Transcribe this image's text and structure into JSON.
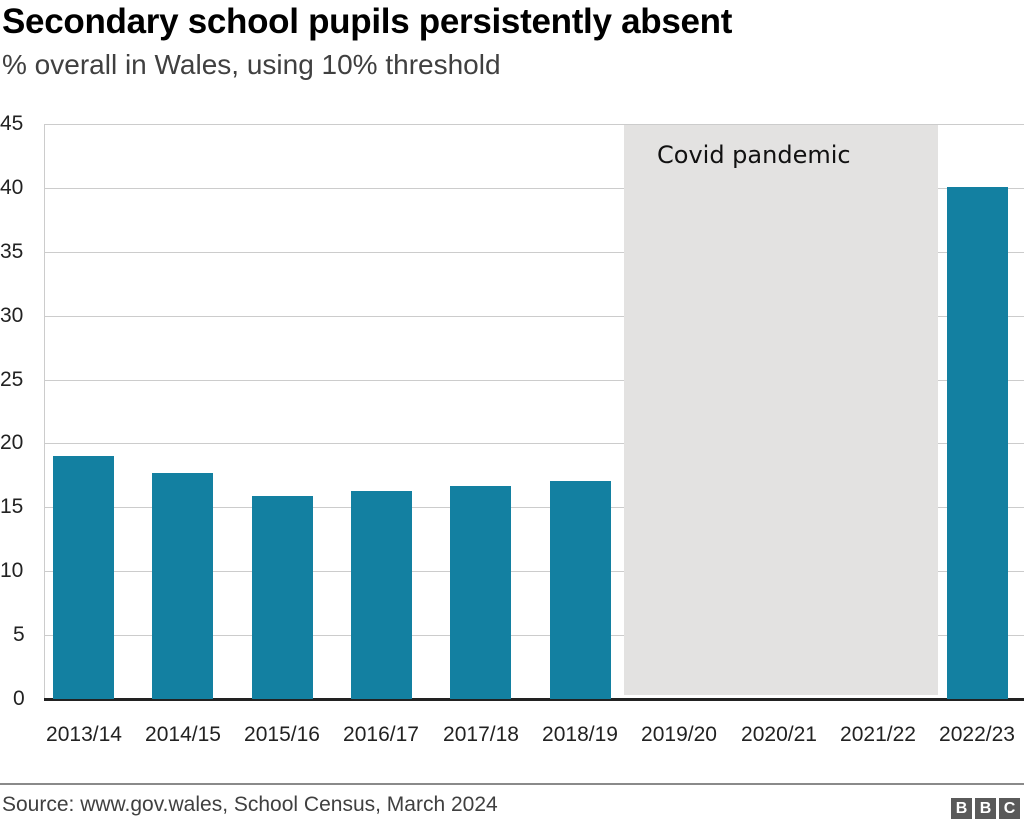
{
  "header": {
    "title": "Secondary school pupils persistently absent",
    "subtitle": "% overall in Wales, using 10% threshold"
  },
  "annotation": {
    "label": "Covid pandemic",
    "color": "#e3e2e1"
  },
  "footer": {
    "source": "Source: www.gov.wales, School Census, March 2024",
    "logo": [
      "B",
      "B",
      "C"
    ]
  },
  "colors": {
    "bar": "#1380a1",
    "grid": "#cccccc",
    "baseline": "#222222"
  },
  "chart_data": {
    "type": "bar",
    "title": "Secondary school pupils persistently absent",
    "subtitle": "% overall in Wales, using 10% threshold",
    "xlabel": "",
    "ylabel": "",
    "categories": [
      "2013/14",
      "2014/15",
      "2015/16",
      "2016/17",
      "2017/18",
      "2018/19",
      "2019/20",
      "2020/21",
      "2021/22",
      "2022/23"
    ],
    "values": [
      19.0,
      17.7,
      15.9,
      16.3,
      16.7,
      17.1,
      null,
      null,
      null,
      40.1
    ],
    "ylim": [
      0,
      45
    ],
    "yticks": [
      0,
      5,
      10,
      15,
      20,
      25,
      30,
      35,
      40,
      45
    ],
    "grid": true,
    "legend": null,
    "annotations": [
      {
        "type": "shaded_region",
        "label": "Covid pandemic",
        "from": "2019/20",
        "to": "2021/22"
      }
    ],
    "source": "Source: www.gov.wales, School Census, March 2024"
  }
}
